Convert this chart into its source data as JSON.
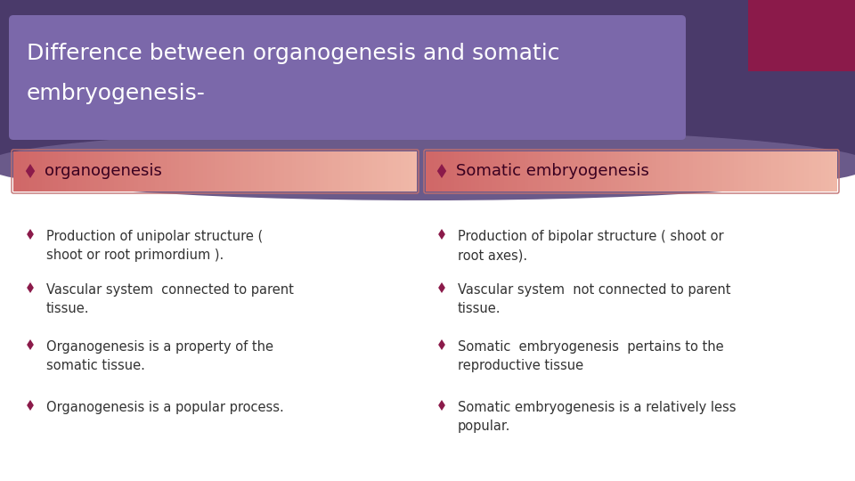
{
  "title_line1": "Difference between organogenesis and somatic",
  "title_line2": "embryogenesis-",
  "title_bg_outer": "#4A3A6A",
  "title_bg_inner": "#7B68AA",
  "title_text_color": "#FFFFFF",
  "accent_box_color": "#8B1A4A",
  "header_left": "organogenesis",
  "header_right": "Somatic embryogenesis",
  "header_bg_left": "#E8887A",
  "header_bg_right": "#E8A090",
  "header_text_color": "#3A0020",
  "bullet_color": "#8B1A4A",
  "body_text_color": "#333333",
  "bg_color": "#FFFFFF",
  "shadow_color": "#6A5A8A",
  "left_bullets": [
    "Production of unipolar structure (\nshoot or root primordium ).",
    "Vascular system  connected to parent\ntissue.",
    "Organogenesis is a property of the\nsomatic tissue.",
    "Organogenesis is a popular process."
  ],
  "right_bullets": [
    "Production of bipolar structure ( shoot or\nroot axes).",
    "Vascular system  not connected to parent\ntissue.",
    "Somatic  embryogenesis  pertains to the\nreproductive tissue",
    "Somatic embryogenesis is a relatively less\npopular."
  ]
}
